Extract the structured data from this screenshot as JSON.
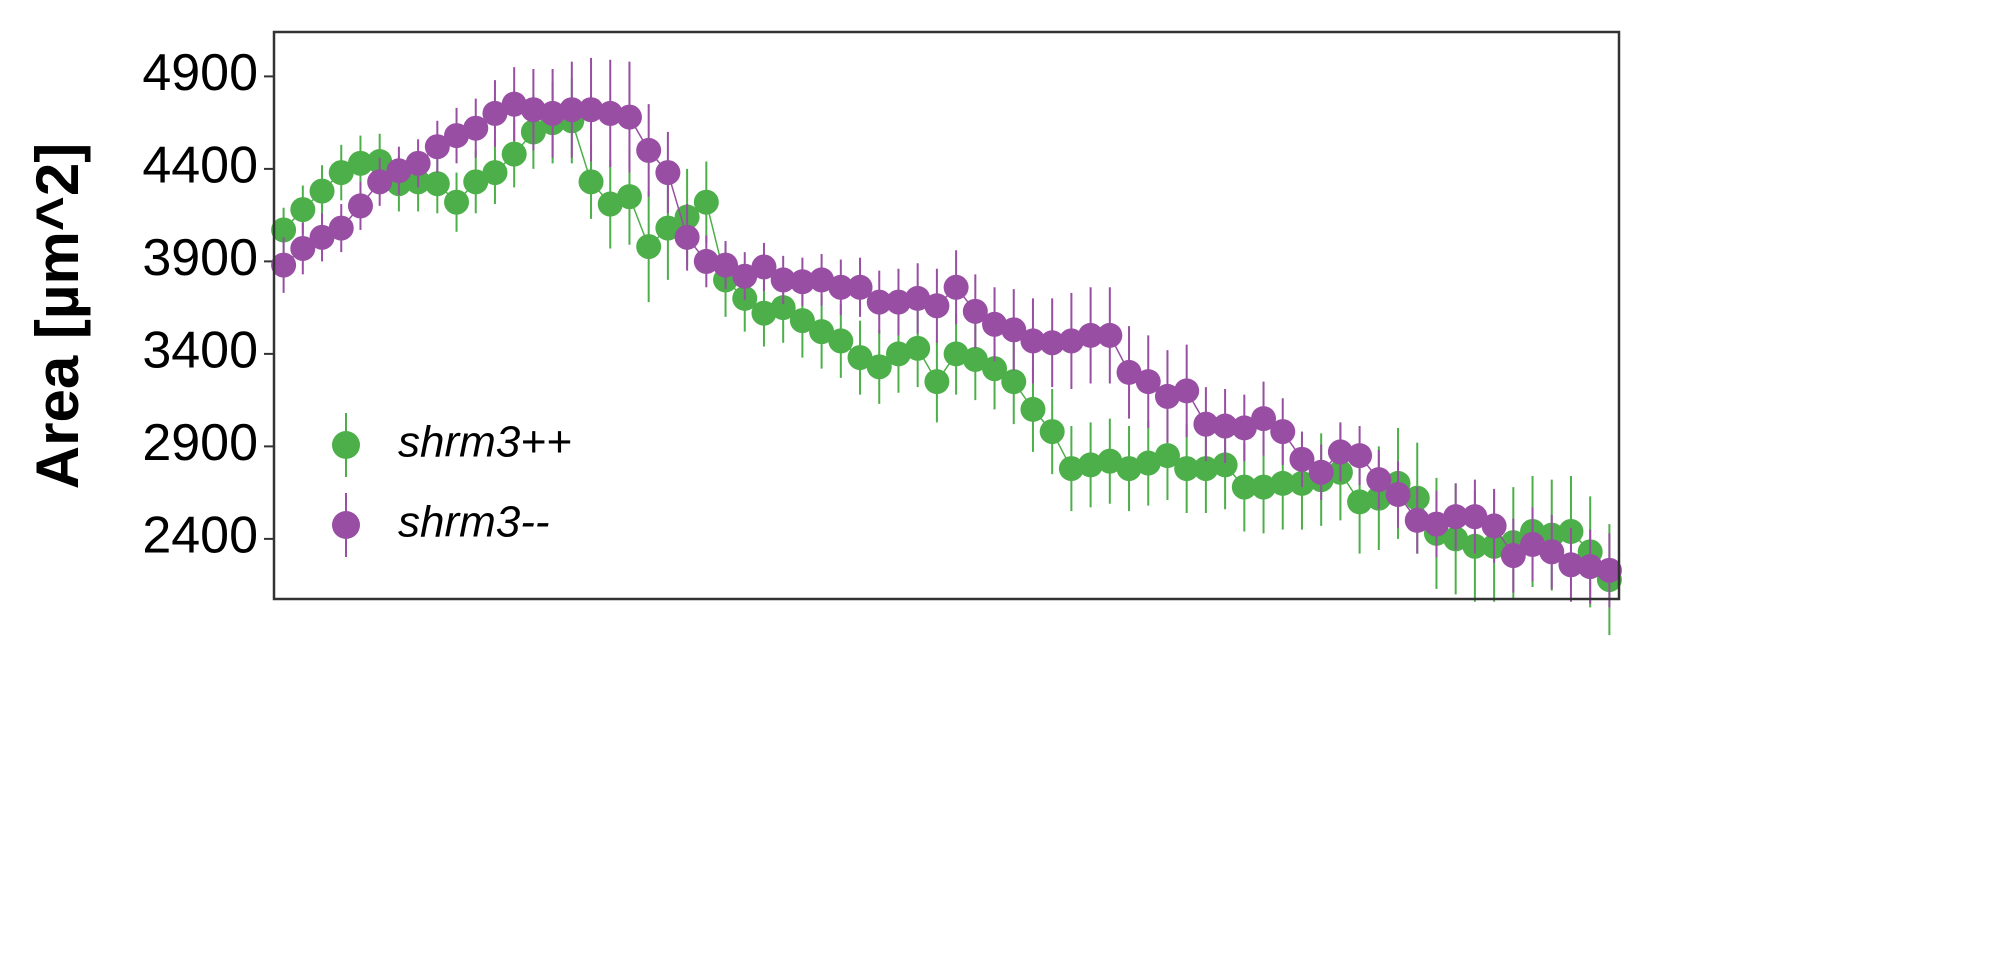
{
  "chart_data": {
    "type": "scatter",
    "y_label": "Area [µm^2]",
    "x": [
      1,
      2,
      3,
      4,
      5,
      6,
      7,
      8,
      9,
      10,
      11,
      12,
      13,
      14,
      15,
      16,
      17,
      18,
      19,
      20,
      21,
      22,
      23,
      24,
      25,
      26,
      27,
      28,
      29,
      30,
      31,
      32,
      33,
      34,
      35,
      36,
      37,
      38,
      39,
      40,
      41,
      42,
      43,
      44,
      45,
      46,
      47,
      48,
      49,
      50,
      51,
      52,
      53,
      54,
      55,
      56,
      57,
      58,
      59,
      60,
      61,
      62,
      63,
      64,
      65,
      66,
      67,
      68,
      69,
      70
    ],
    "xlim": [
      0.5,
      70.5
    ],
    "ylim": [
      2075,
      5140
    ],
    "yticks": [
      2400,
      2900,
      3400,
      3900,
      4400,
      4900
    ],
    "legend": "lower left",
    "series": [
      {
        "name": "shrm3++",
        "color": "#4daf4a",
        "values": [
          4070,
          4180,
          4280,
          4380,
          4430,
          4440,
          4320,
          4330,
          4320,
          4220,
          4330,
          4380,
          4480,
          4600,
          4650,
          4660,
          4330,
          4210,
          4250,
          3980,
          4080,
          4140,
          4220,
          3800,
          3700,
          3620,
          3650,
          3580,
          3520,
          3470,
          3380,
          3330,
          3400,
          3430,
          3250,
          3400,
          3370,
          3320,
          3250,
          3100,
          2980,
          2780,
          2800,
          2820,
          2780,
          2810,
          2850,
          2780,
          2780,
          2800,
          2680,
          2680,
          2700,
          2700,
          2720,
          2760,
          2600,
          2620,
          2700,
          2620,
          2430,
          2400,
          2360,
          2360,
          2380,
          2440,
          2420,
          2440,
          2330,
          2180
        ],
        "errors": [
          120,
          130,
          140,
          150,
          150,
          150,
          150,
          160,
          160,
          160,
          170,
          170,
          180,
          200,
          220,
          230,
          200,
          240,
          260,
          300,
          280,
          260,
          220,
          200,
          180,
          180,
          190,
          200,
          200,
          200,
          200,
          200,
          210,
          210,
          220,
          220,
          220,
          220,
          230,
          230,
          230,
          230,
          230,
          230,
          230,
          230,
          240,
          240,
          240,
          240,
          240,
          250,
          250,
          250,
          250,
          260,
          280,
          280,
          300,
          300,
          300,
          300,
          300,
          300,
          300,
          300,
          300,
          300,
          300,
          300
        ]
      },
      {
        "name": "shrm3--",
        "color": "#984ea3",
        "values": [
          3880,
          3970,
          4030,
          4080,
          4200,
          4330,
          4390,
          4430,
          4520,
          4580,
          4620,
          4700,
          4750,
          4720,
          4700,
          4720,
          4720,
          4700,
          4680,
          4500,
          4380,
          4030,
          3900,
          3880,
          3820,
          3870,
          3800,
          3790,
          3800,
          3760,
          3760,
          3680,
          3680,
          3700,
          3660,
          3760,
          3630,
          3560,
          3530,
          3470,
          3460,
          3470,
          3500,
          3500,
          3300,
          3250,
          3170,
          3200,
          3020,
          3010,
          3000,
          3050,
          2980,
          2830,
          2760,
          2870,
          2850,
          2720,
          2640,
          2500,
          2480,
          2520,
          2520,
          2470,
          2310,
          2370,
          2330,
          2260,
          2250,
          2230
        ],
        "errors": [
          150,
          140,
          130,
          130,
          130,
          130,
          130,
          130,
          140,
          150,
          160,
          180,
          200,
          220,
          240,
          260,
          280,
          290,
          300,
          250,
          220,
          180,
          140,
          130,
          130,
          130,
          130,
          130,
          140,
          150,
          160,
          170,
          180,
          190,
          200,
          200,
          200,
          200,
          220,
          230,
          240,
          260,
          260,
          260,
          250,
          250,
          250,
          250,
          200,
          200,
          180,
          200,
          180,
          150,
          150,
          160,
          160,
          160,
          180,
          180,
          180,
          180,
          200,
          200,
          200,
          200,
          200,
          200,
          200,
          200
        ]
      }
    ]
  }
}
